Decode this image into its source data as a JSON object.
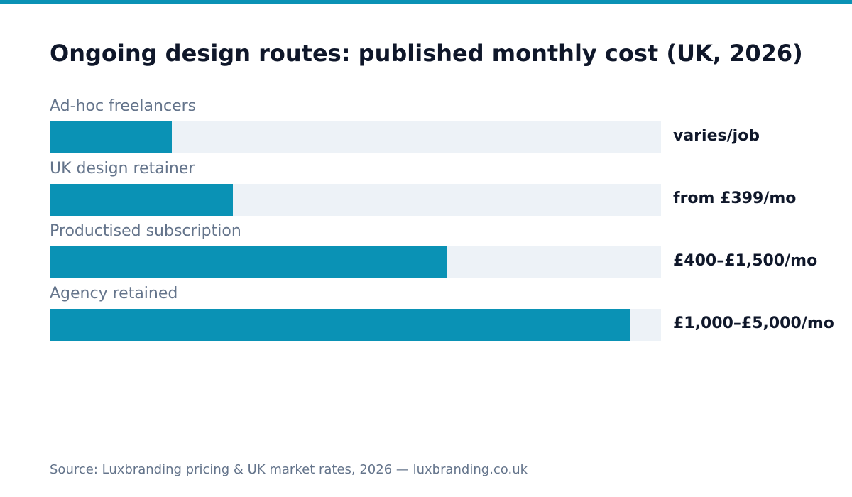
{
  "colors": {
    "accent": "#0a92b5",
    "track": "#edf2f7",
    "title": "#0f172a",
    "muted": "#64748b"
  },
  "chart_data": {
    "type": "bar",
    "orientation": "horizontal",
    "title": "Ongoing design routes: published monthly cost (UK, 2026)",
    "categories": [
      "Ad-hoc freelancers",
      "UK design retainer",
      "Productised subscription",
      "Agency retained"
    ],
    "value_labels": [
      "varies/job",
      "from £399/mo",
      "£400–£1,500/mo",
      "£1,000–£5,000/mo"
    ],
    "values": [
      0.2,
      0.3,
      0.65,
      0.95
    ],
    "value_scale": "fraction of full track",
    "grid": false,
    "legend": "none"
  },
  "source": "Source: Luxbranding pricing & UK market rates, 2026 — luxbranding.co.uk"
}
